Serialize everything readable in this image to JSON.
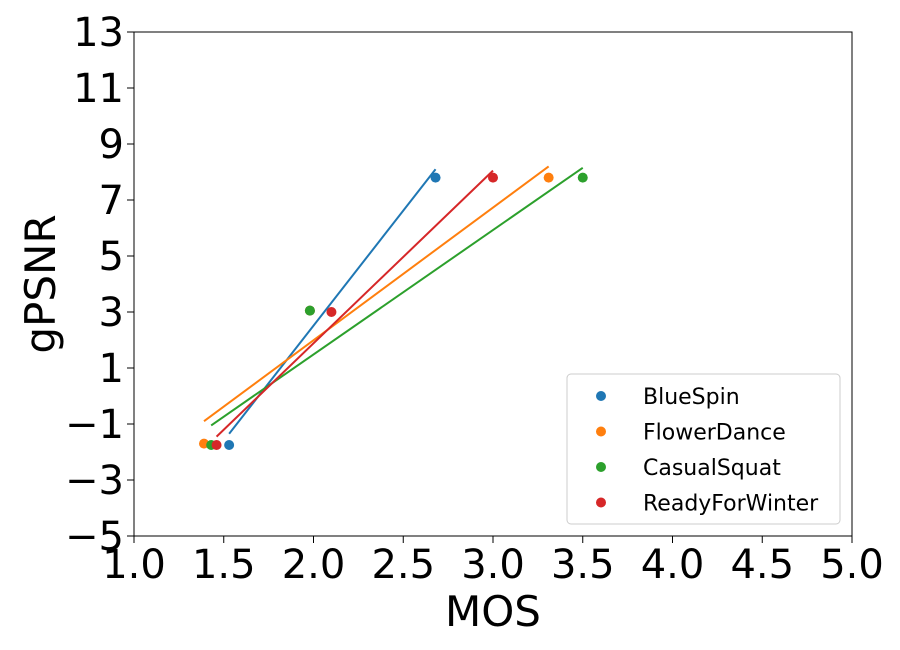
{
  "chart_data": {
    "type": "scatter",
    "title": "",
    "xlabel": "MOS",
    "ylabel": "gPSNR",
    "xlim": [
      1.0,
      5.0
    ],
    "ylim": [
      -5,
      13
    ],
    "xticks": [
      1.0,
      1.5,
      2.0,
      2.5,
      3.0,
      3.5,
      4.0,
      4.5,
      5.0
    ],
    "xtick_labels": [
      "1.0",
      "1.5",
      "2.0",
      "2.5",
      "3.0",
      "3.5",
      "4.0",
      "4.5",
      "5.0"
    ],
    "yticks": [
      -5,
      -3,
      -1,
      1,
      3,
      5,
      7,
      9,
      11,
      13
    ],
    "ytick_labels": [
      "−5",
      "−3",
      "−1",
      "1",
      "3",
      "5",
      "7",
      "9",
      "11",
      "13"
    ],
    "grid": false,
    "legend_position": "bottom-right",
    "series": [
      {
        "name": "BlueSpin",
        "color": "#1f77b4",
        "points": [
          [
            1.53,
            -1.75
          ],
          [
            1.98,
            3.05
          ],
          [
            2.68,
            7.8
          ]
        ],
        "fit_line": [
          [
            1.53,
            -1.35
          ],
          [
            2.68,
            8.1
          ]
        ]
      },
      {
        "name": "FlowerDance",
        "color": "#ff7f0e",
        "points": [
          [
            1.39,
            -1.7
          ],
          [
            1.98,
            3.05
          ],
          [
            3.31,
            7.8
          ]
        ],
        "fit_line": [
          [
            1.39,
            -0.9
          ],
          [
            3.31,
            8.2
          ]
        ]
      },
      {
        "name": "CasualSquat",
        "color": "#2ca02c",
        "points": [
          [
            1.43,
            -1.75
          ],
          [
            1.98,
            3.05
          ],
          [
            3.5,
            7.8
          ]
        ],
        "fit_line": [
          [
            1.43,
            -1.05
          ],
          [
            3.5,
            8.15
          ]
        ]
      },
      {
        "name": "ReadyForWinter",
        "color": "#d62728",
        "points": [
          [
            1.46,
            -1.75
          ],
          [
            2.1,
            3.0
          ],
          [
            3.0,
            7.8
          ]
        ],
        "fit_line": [
          [
            1.46,
            -1.45
          ],
          [
            3.0,
            8.05
          ]
        ]
      }
    ]
  }
}
